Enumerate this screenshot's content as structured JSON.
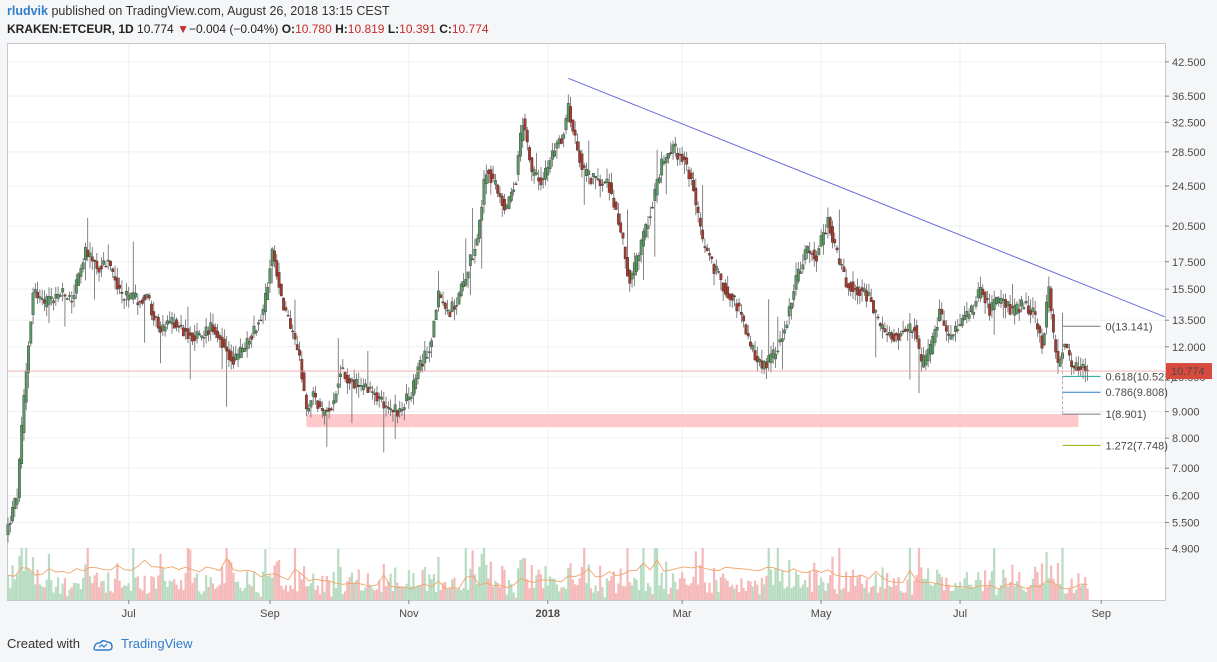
{
  "header": {
    "author": "rludvik",
    "published_text": "published on TradingView.com, August 26, 2018 13:15 CEST"
  },
  "ticker": {
    "symbol": "KRAKEN:ETCEUR, 1D",
    "last": "10.774",
    "arrow": "▼",
    "change": "−0.004 (−0.04%)",
    "open_label": "O:",
    "open": "10.780",
    "high_label": "H:",
    "high": "10.819",
    "low_label": "L:",
    "low": "10.391",
    "close_label": "C:",
    "close": "10.774"
  },
  "footer": {
    "created_with": "Created with",
    "brand": "TradingView"
  },
  "colors": {
    "up": "#5b9b63",
    "down": "#a83a2e",
    "trend": "#6b6ddb",
    "zone": "#ffc9cb",
    "price_tag": "#d94a3e"
  },
  "chart_data": {
    "type": "candlestick",
    "symbol": "KRAKEN:ETCEUR",
    "interval": "1D",
    "y_scale": "log",
    "ylim": [
      3.9,
      46.0
    ],
    "xlim": [
      "2017-05-09",
      "2018-09-29"
    ],
    "y_ticks": [
      42.5,
      36.5,
      32.5,
      28.5,
      24.5,
      20.5,
      17.5,
      15.5,
      13.5,
      12.0,
      10.5,
      9.0,
      8.0,
      7.0,
      6.2,
      5.5,
      4.9
    ],
    "y_tick_labels": [
      "42.500",
      "36.500",
      "32.500",
      "28.500",
      "24.500",
      "20.500",
      "17.500",
      "15.500",
      "13.500",
      "12.000",
      "10.500",
      "9.000",
      "8.000",
      "7.000",
      "6.200",
      "5.500",
      "4.900"
    ],
    "x_ticks": [
      {
        "label": "Jul",
        "date": "2017-07-01"
      },
      {
        "label": "Sep",
        "date": "2017-09-01"
      },
      {
        "label": "Nov",
        "date": "2017-11-01"
      },
      {
        "label": "2018",
        "date": "2018-01-01",
        "bold": true
      },
      {
        "label": "Mar",
        "date": "2018-03-01"
      },
      {
        "label": "May",
        "date": "2018-05-01"
      },
      {
        "label": "Jul",
        "date": "2018-07-01"
      },
      {
        "label": "Sep",
        "date": "2018-09-01"
      }
    ],
    "price_path": [
      [
        "2017-05-09",
        5.4
      ],
      [
        "2017-05-13",
        6.2
      ],
      [
        "2017-05-16",
        9.5
      ],
      [
        "2017-05-20",
        15.5
      ],
      [
        "2017-05-25",
        14.5
      ],
      [
        "2017-06-01",
        15.2
      ],
      [
        "2017-06-06",
        14.8
      ],
      [
        "2017-06-12",
        18.2
      ],
      [
        "2017-06-18",
        17.0
      ],
      [
        "2017-06-22",
        17.5
      ],
      [
        "2017-06-28",
        15.0
      ],
      [
        "2017-07-04",
        14.8
      ],
      [
        "2017-07-09",
        15.0
      ],
      [
        "2017-07-15",
        12.8
      ],
      [
        "2017-07-20",
        13.5
      ],
      [
        "2017-07-25",
        12.9
      ],
      [
        "2017-08-01",
        12.5
      ],
      [
        "2017-08-07",
        13.2
      ],
      [
        "2017-08-12",
        12.0
      ],
      [
        "2017-08-16",
        11.2
      ],
      [
        "2017-08-22",
        12.2
      ],
      [
        "2017-08-29",
        14.0
      ],
      [
        "2017-09-02",
        18.5
      ],
      [
        "2017-09-06",
        15.0
      ],
      [
        "2017-09-10",
        13.0
      ],
      [
        "2017-09-14",
        11.5
      ],
      [
        "2017-09-17",
        8.9
      ],
      [
        "2017-09-20",
        9.8
      ],
      [
        "2017-09-24",
        8.8
      ],
      [
        "2017-09-29",
        9.5
      ],
      [
        "2017-10-02",
        10.8
      ],
      [
        "2017-10-07",
        10.2
      ],
      [
        "2017-10-12",
        10.0
      ],
      [
        "2017-10-18",
        9.6
      ],
      [
        "2017-10-23",
        9.2
      ],
      [
        "2017-10-28",
        9.0
      ],
      [
        "2017-11-02",
        9.8
      ],
      [
        "2017-11-06",
        11.0
      ],
      [
        "2017-11-10",
        12.0
      ],
      [
        "2017-11-14",
        15.0
      ],
      [
        "2017-11-18",
        14.0
      ],
      [
        "2017-11-22",
        14.5
      ],
      [
        "2017-11-26",
        16.5
      ],
      [
        "2017-12-01",
        19.5
      ],
      [
        "2017-12-05",
        26.5
      ],
      [
        "2017-12-10",
        24.0
      ],
      [
        "2017-12-14",
        22.0
      ],
      [
        "2017-12-18",
        25.5
      ],
      [
        "2017-12-21",
        33.0
      ],
      [
        "2017-12-25",
        26.0
      ],
      [
        "2017-12-30",
        25.0
      ],
      [
        "2018-01-04",
        29.0
      ],
      [
        "2018-01-08",
        31.0
      ],
      [
        "2018-01-10",
        35.0
      ],
      [
        "2018-01-13",
        30.0
      ],
      [
        "2018-01-17",
        26.0
      ],
      [
        "2018-01-22",
        25.0
      ],
      [
        "2018-01-28",
        24.5
      ],
      [
        "2018-02-02",
        20.0
      ],
      [
        "2018-02-06",
        16.0
      ],
      [
        "2018-02-10",
        18.0
      ],
      [
        "2018-02-15",
        22.0
      ],
      [
        "2018-02-20",
        27.0
      ],
      [
        "2018-02-25",
        29.0
      ],
      [
        "2018-03-02",
        27.5
      ],
      [
        "2018-03-06",
        24.0
      ],
      [
        "2018-03-10",
        19.0
      ],
      [
        "2018-03-15",
        17.0
      ],
      [
        "2018-03-20",
        15.5
      ],
      [
        "2018-03-25",
        14.5
      ],
      [
        "2018-03-31",
        12.0
      ],
      [
        "2018-04-05",
        11.0
      ],
      [
        "2018-04-10",
        11.5
      ],
      [
        "2018-04-15",
        13.0
      ],
      [
        "2018-04-20",
        16.0
      ],
      [
        "2018-04-25",
        18.5
      ],
      [
        "2018-04-29",
        18.0
      ],
      [
        "2018-05-04",
        21.0
      ],
      [
        "2018-05-08",
        18.0
      ],
      [
        "2018-05-12",
        16.0
      ],
      [
        "2018-05-17",
        15.5
      ],
      [
        "2018-05-22",
        15.0
      ],
      [
        "2018-05-27",
        13.0
      ],
      [
        "2018-06-01",
        12.5
      ],
      [
        "2018-06-06",
        12.8
      ],
      [
        "2018-06-11",
        13.0
      ],
      [
        "2018-06-14",
        11.0
      ],
      [
        "2018-06-18",
        11.8
      ],
      [
        "2018-06-22",
        14.0
      ],
      [
        "2018-06-26",
        12.5
      ],
      [
        "2018-07-01",
        13.2
      ],
      [
        "2018-07-06",
        14.0
      ],
      [
        "2018-07-10",
        15.5
      ],
      [
        "2018-07-14",
        14.2
      ],
      [
        "2018-07-19",
        14.8
      ],
      [
        "2018-07-24",
        14.0
      ],
      [
        "2018-07-29",
        14.5
      ],
      [
        "2018-08-02",
        14.0
      ],
      [
        "2018-08-06",
        12.0
      ],
      [
        "2018-08-09",
        15.5
      ],
      [
        "2018-08-11",
        12.5
      ],
      [
        "2018-08-13",
        11.0
      ],
      [
        "2018-08-16",
        12.3
      ],
      [
        "2018-08-19",
        11.0
      ],
      [
        "2018-08-23",
        10.9
      ],
      [
        "2018-08-26",
        10.774
      ]
    ],
    "trendline": {
      "from": [
        "2018-01-10",
        39.5
      ],
      "to": [
        "2018-09-29",
        13.7
      ]
    },
    "support_zone": {
      "from": "2017-09-17",
      "to": "2018-08-22",
      "low": 8.4,
      "high": 8.9
    },
    "fibonacci": [
      {
        "level": "0",
        "price": 13.141,
        "label": "0(13.141)",
        "color": "#787b86"
      },
      {
        "level": "0.618",
        "price": 10.521,
        "label": "0.618(10.521)",
        "color": "#22ab94"
      },
      {
        "level": "0.786",
        "price": 9.808,
        "label": "0.786(9.808)",
        "color": "#2f7dcb"
      },
      {
        "level": "1",
        "price": 8.901,
        "label": "1(8.901)",
        "color": "#787b86"
      },
      {
        "level": "1.272",
        "price": 7.748,
        "label": "1.272(7.748)",
        "color": "#8bb300"
      }
    ],
    "fib_anchor_date": "2018-08-15",
    "last_price": 10.774,
    "last_price_label": "10.774"
  }
}
